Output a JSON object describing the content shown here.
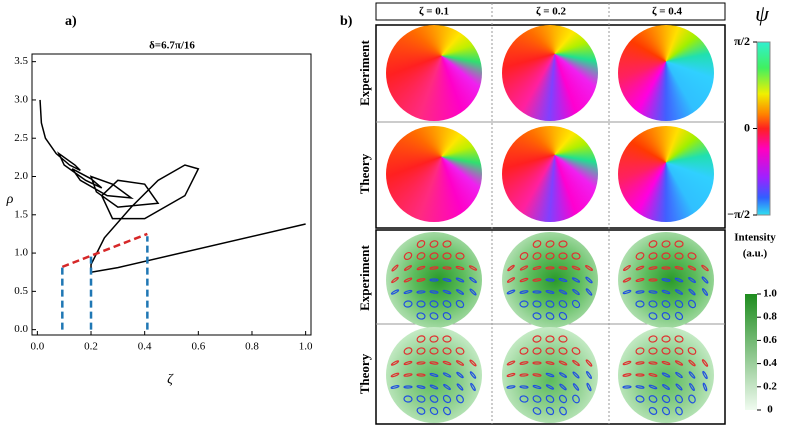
{
  "chart_data": {
    "type": "line",
    "label": "a)",
    "title": "δ=6.7π/16",
    "xlabel": "ζ",
    "ylabel": "ρ",
    "xlim": [
      -0.02,
      1.02
    ],
    "ylim": [
      -0.07,
      3.6
    ],
    "xticks": [
      {
        "value": 0,
        "label": "0.0"
      },
      {
        "value": 0.2,
        "label": "0.2"
      },
      {
        "value": 0.4,
        "label": "0.4"
      },
      {
        "value": 0.6,
        "label": "0.6"
      },
      {
        "value": 0.8,
        "label": "0.8"
      },
      {
        "value": 1,
        "label": "1.0"
      }
    ],
    "yticks": [
      {
        "value": 0,
        "label": "0.0"
      },
      {
        "value": 0.5,
        "label": "0.5"
      },
      {
        "value": 1,
        "label": "1.0"
      },
      {
        "value": 1.5,
        "label": "1.5"
      },
      {
        "value": 2,
        "label": "2.0"
      },
      {
        "value": 2.5,
        "label": "2.5"
      },
      {
        "value": 3,
        "label": "3.0"
      },
      {
        "value": 3.5,
        "label": "3.5"
      }
    ],
    "series": [
      {
        "color": "#000000",
        "dash": false,
        "x": [
          0.01,
          0.015,
          0.03,
          0.07,
          0.12,
          0.16,
          0.14,
          0.08,
          0.1,
          0.18,
          0.24,
          0.2,
          0.13,
          0.16,
          0.26,
          0.35,
          0.28,
          0.2,
          0.22,
          0.3,
          0.45,
          0.4,
          0.3,
          0.24,
          0.28,
          0.4,
          0.55,
          0.6,
          0.55,
          0.45,
          0.35,
          0.25,
          0.2,
          0.2,
          0.3,
          1.0
        ],
        "values": [
          3.0,
          2.7,
          2.5,
          2.3,
          2.15,
          2.08,
          2.15,
          2.3,
          2.15,
          1.95,
          1.85,
          1.97,
          2.1,
          1.95,
          1.75,
          1.72,
          1.9,
          2.0,
          1.8,
          1.6,
          1.65,
          1.9,
          1.95,
          1.75,
          1.45,
          1.45,
          1.75,
          2.1,
          2.15,
          1.95,
          1.6,
          1.2,
          0.85,
          0.75,
          0.81,
          1.38
        ]
      },
      {
        "color": "#d62728",
        "dash": true,
        "x": [
          0.093,
          0.41
        ],
        "values": [
          0.82,
          1.25
        ]
      },
      {
        "color": "#1f77b4",
        "dash": true,
        "x": [
          0.093,
          0.093
        ],
        "values": [
          0,
          0.82
        ]
      },
      {
        "color": "#1f77b4",
        "dash": true,
        "x": [
          0.2,
          0.2
        ],
        "values": [
          0,
          0.97
        ]
      },
      {
        "color": "#1f77b4",
        "dash": true,
        "x": [
          0.41,
          0.41
        ],
        "values": [
          0,
          1.22
        ]
      }
    ]
  },
  "panel_b": {
    "label": "b)",
    "columns": [
      "ζ = 0.1",
      "ζ = 0.2",
      "ζ = 0.4"
    ],
    "rows_top": [
      "Experiment",
      "Theory"
    ],
    "rows_bottom": [
      "Experiment",
      "Theory"
    ],
    "phase_colorbar": {
      "label": "ψ",
      "lim": [
        -1.5708,
        1.5708
      ],
      "ticks": [
        {
          "value": 1.5708,
          "label": "π/2"
        },
        0,
        {
          "value": -1.5708,
          "label": "−π/2"
        }
      ]
    },
    "intensity_colorbar": {
      "label": "Intensity",
      "unit": "(a.u.)",
      "lim": [
        0,
        1
      ],
      "ticks": [
        0,
        0.2,
        0.4,
        0.6,
        0.8,
        {
          "value": 1,
          "label": "1.0"
        }
      ]
    }
  }
}
